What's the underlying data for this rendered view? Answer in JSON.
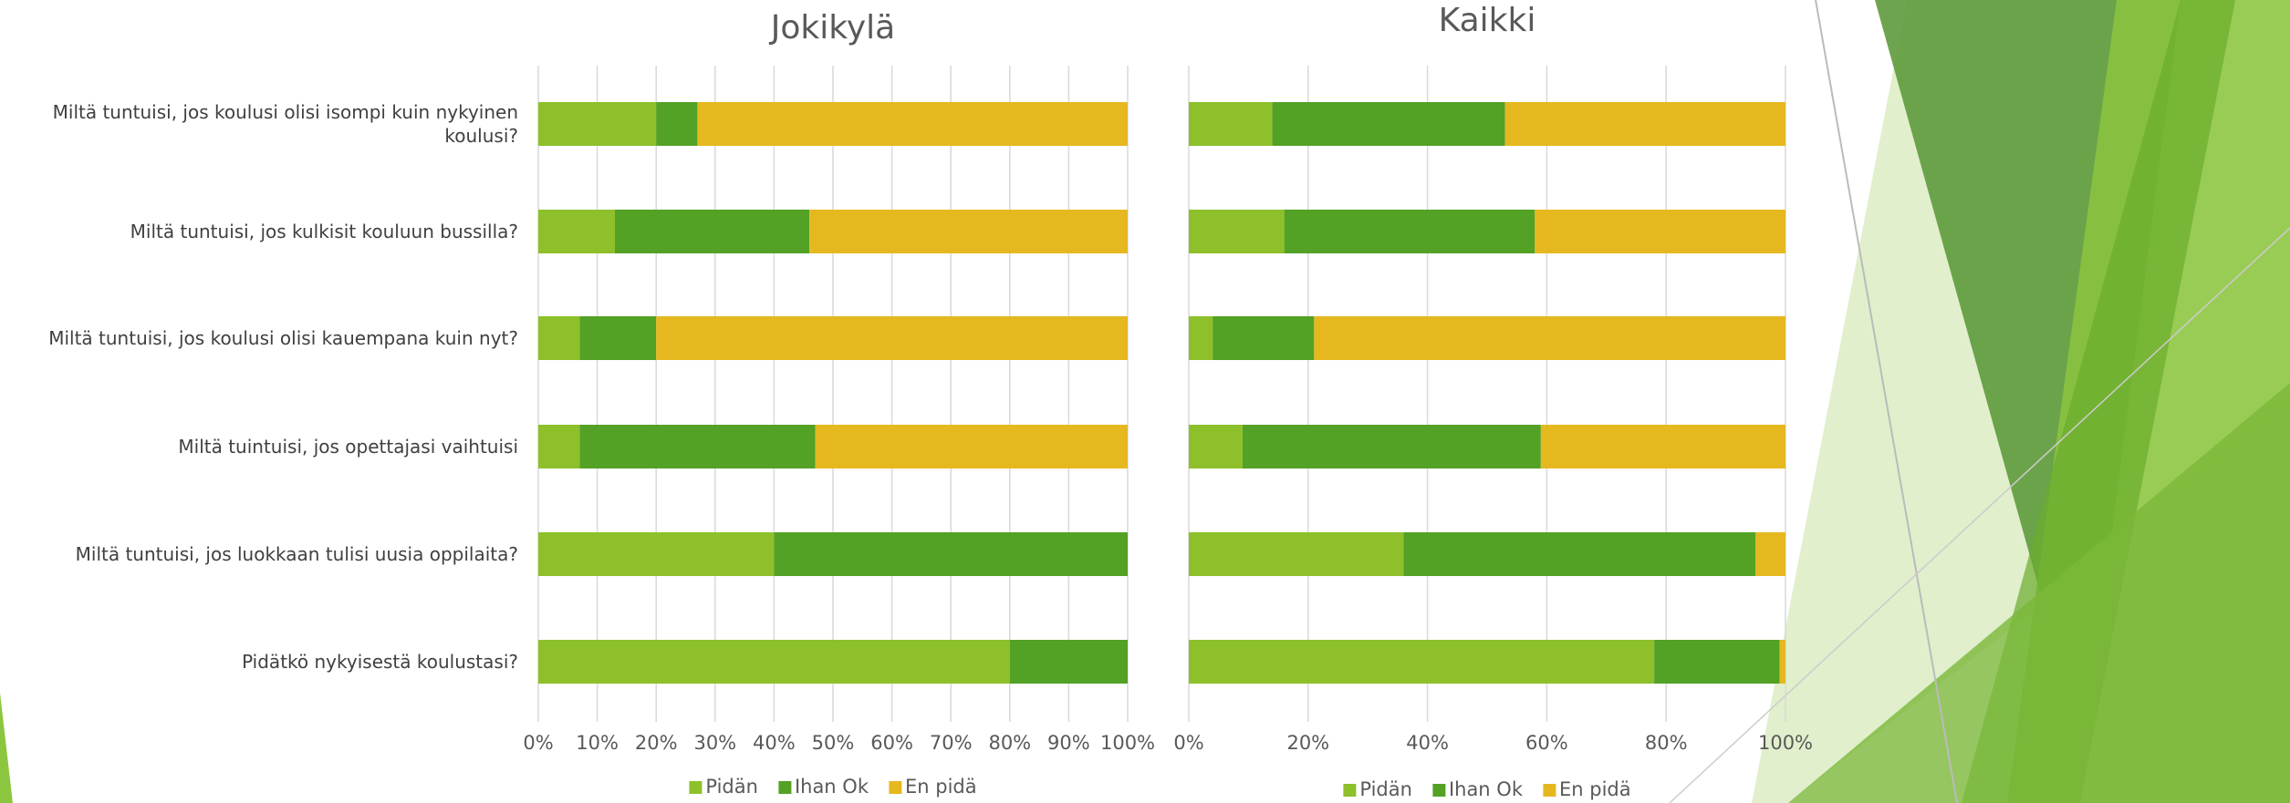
{
  "chart_data": [
    {
      "type": "bar",
      "orientation": "horizontal",
      "stacked": true,
      "title": "Jokikylä",
      "categories": [
        "Miltä tuntuisi, jos koulusi olisi isompi kuin nykyinen koulusi?",
        "Miltä tuntuisi, jos kulkisit kouluun bussilla?",
        "Miltä tuntuisi, jos koulusi olisi kauempana kuin nyt?",
        "Miltä tuintuisi, jos opettajasi vaihtuisi",
        "Miltä tuntuisi, jos luokkaan tulisi uusia oppilaita?",
        "Pidätkö nykyisestä koulustasi?"
      ],
      "series": [
        {
          "name": "Pidän",
          "color": "#8dc02a",
          "values": [
            20,
            13,
            7,
            7,
            40,
            80
          ]
        },
        {
          "name": "Ihan Ok",
          "color": "#53a125",
          "values": [
            7,
            33,
            13,
            40,
            60,
            20
          ]
        },
        {
          "name": "En pidä",
          "color": "#e6b820",
          "values": [
            73,
            54,
            80,
            53,
            0,
            0
          ]
        }
      ],
      "xlim": [
        0,
        100
      ],
      "xticks": [
        {
          "value": 0,
          "label": "0%"
        },
        {
          "value": 10,
          "label": "10%"
        },
        {
          "value": 20,
          "label": "20%"
        },
        {
          "value": 30,
          "label": "30%"
        },
        {
          "value": 40,
          "label": "40%"
        },
        {
          "value": 50,
          "label": "50%"
        },
        {
          "value": 60,
          "label": "60%"
        },
        {
          "value": 70,
          "label": "70%"
        },
        {
          "value": 80,
          "label": "80%"
        },
        {
          "value": 90,
          "label": "90%"
        },
        {
          "value": 100,
          "label": "100%"
        }
      ],
      "grid": true,
      "legend": "bottom"
    },
    {
      "type": "bar",
      "orientation": "horizontal",
      "stacked": true,
      "title": "Kaikki",
      "categories": [
        null,
        null,
        null,
        null,
        null,
        null
      ],
      "series": [
        {
          "name": "Pidän",
          "color": "#8dc02a",
          "values": [
            14,
            16,
            4,
            9,
            36,
            78
          ]
        },
        {
          "name": "Ihan Ok",
          "color": "#53a125",
          "values": [
            39,
            42,
            17,
            50,
            59,
            21
          ]
        },
        {
          "name": "En pidä",
          "color": "#e6b820",
          "values": [
            47,
            42,
            79,
            41,
            5,
            1
          ]
        }
      ],
      "xlim": [
        0,
        100
      ],
      "xticks": [
        {
          "value": 0,
          "label": "0%"
        },
        {
          "value": 20,
          "label": "20%"
        },
        {
          "value": 40,
          "label": "40%"
        },
        {
          "value": 60,
          "label": "60%"
        },
        {
          "value": 80,
          "label": "80%"
        },
        {
          "value": 100,
          "label": "100%"
        }
      ],
      "grid": true,
      "legend": "bottom"
    }
  ]
}
